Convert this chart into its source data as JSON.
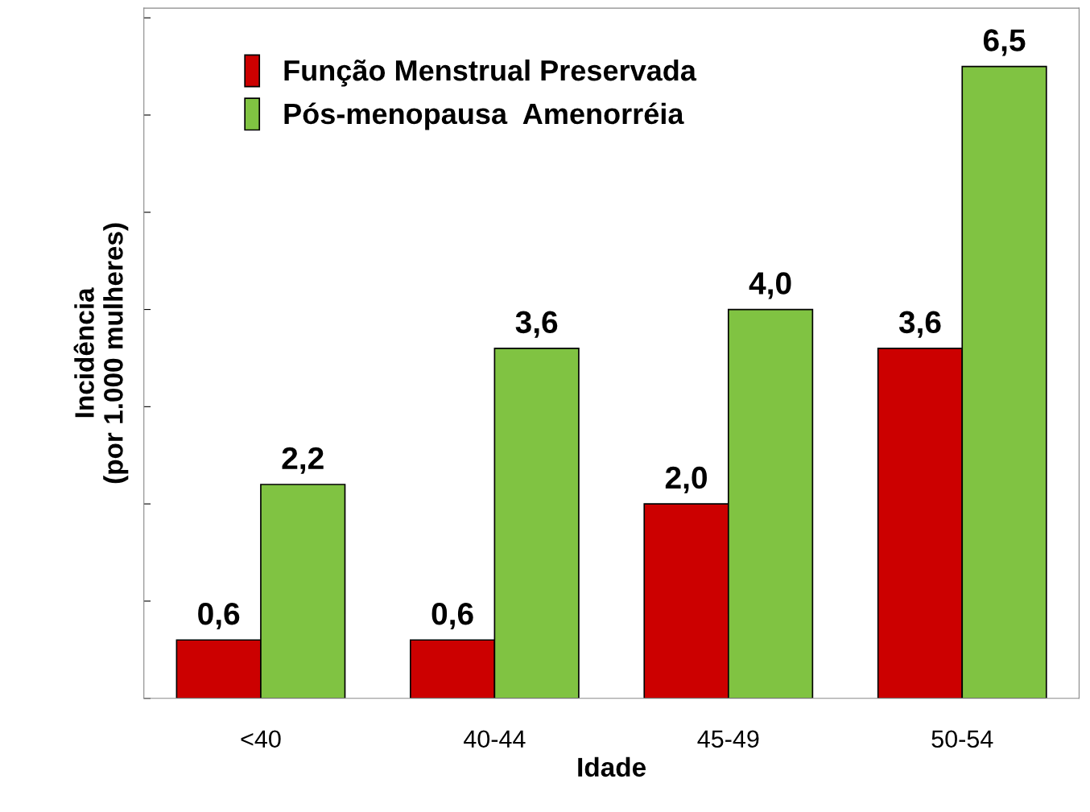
{
  "chart_data": {
    "type": "bar",
    "xlabel": "Idade",
    "ylabel": "Incidência\n(por 1.000 mulheres)",
    "categories": [
      "<40",
      "40-44",
      "45-49",
      "50-54"
    ],
    "series": [
      {
        "name": "Função Menstrual Preservada",
        "color": "#cc0000",
        "values": [
          0.6,
          0.6,
          2.0,
          3.6
        ],
        "value_labels": [
          "0,6",
          "0,6",
          "2,0",
          "3,6"
        ]
      },
      {
        "name": "Pós-menopausa  Amenorréia",
        "color": "#80c342",
        "values": [
          2.2,
          3.6,
          4.0,
          6.5
        ],
        "value_labels": [
          "2,2",
          "3,6",
          "4,0",
          "6,5"
        ]
      }
    ],
    "ylim": [
      0,
      7.1
    ],
    "yticks": [
      {
        "value": 0,
        "label": null
      },
      {
        "value": 1,
        "label": null
      },
      {
        "value": 2,
        "label": null
      },
      {
        "value": 3,
        "label": null
      },
      {
        "value": 4,
        "label": null
      },
      {
        "value": 5,
        "label": null
      },
      {
        "value": 6,
        "label": null
      },
      {
        "value": 7,
        "label": null
      }
    ],
    "tick_labels": "x",
    "grid": false,
    "legend": "top left"
  }
}
